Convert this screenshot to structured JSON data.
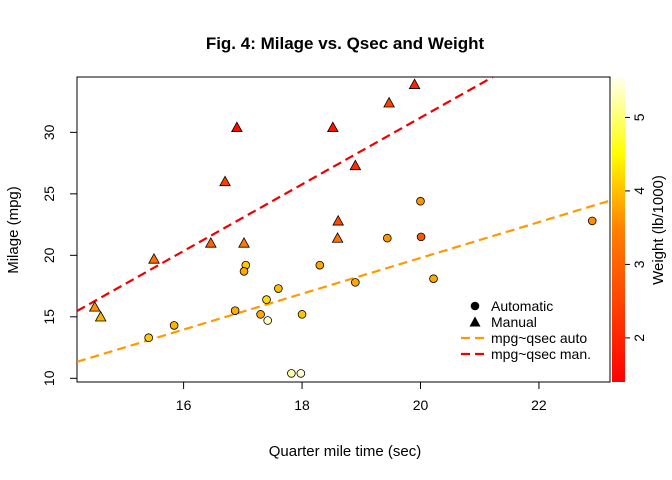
{
  "chart_data": {
    "type": "scatter",
    "title": "Fig. 4: Milage vs. Qsec and Weight",
    "xlabel": "Quarter mile time (sec)",
    "ylabel": "Milage (mpg)",
    "xlim": [
      14.2,
      23.2
    ],
    "ylim": [
      9.7,
      34.5
    ],
    "xticks": [
      16,
      18,
      20,
      22
    ],
    "yticks": [
      10,
      15,
      20,
      25,
      30
    ],
    "grid": false,
    "legend_position": "bottom-right",
    "series": [
      {
        "name": "Automatic",
        "marker": "circle",
        "points": [
          {
            "x": 20.22,
            "y": 18.1,
            "wt": 3.46
          },
          {
            "x": 15.84,
            "y": 14.3,
            "wt": 3.57
          },
          {
            "x": 20.0,
            "y": 24.4,
            "wt": 3.19
          },
          {
            "x": 22.9,
            "y": 22.8,
            "wt": 3.15
          },
          {
            "x": 18.3,
            "y": 19.2,
            "wt": 3.44
          },
          {
            "x": 18.9,
            "y": 17.8,
            "wt": 3.44
          },
          {
            "x": 17.4,
            "y": 16.4,
            "wt": 4.07
          },
          {
            "x": 17.6,
            "y": 17.3,
            "wt": 3.73
          },
          {
            "x": 18.0,
            "y": 15.2,
            "wt": 3.78
          },
          {
            "x": 17.82,
            "y": 10.4,
            "wt": 5.25
          },
          {
            "x": 17.98,
            "y": 10.4,
            "wt": 5.42
          },
          {
            "x": 17.42,
            "y": 14.7,
            "wt": 5.345
          },
          {
            "x": 20.01,
            "y": 21.5,
            "wt": 2.465
          },
          {
            "x": 16.87,
            "y": 15.5,
            "wt": 3.52
          },
          {
            "x": 17.3,
            "y": 15.2,
            "wt": 3.435
          },
          {
            "x": 15.41,
            "y": 13.3,
            "wt": 3.84
          },
          {
            "x": 17.05,
            "y": 19.2,
            "wt": 3.845
          },
          {
            "x": 19.44,
            "y": 21.4,
            "wt": 3.215
          },
          {
            "x": 17.02,
            "y": 18.7,
            "wt": 3.44
          }
        ]
      },
      {
        "name": "Manual",
        "marker": "triangle",
        "points": [
          {
            "x": 16.46,
            "y": 21.0,
            "wt": 2.62
          },
          {
            "x": 17.02,
            "y": 21.0,
            "wt": 2.875
          },
          {
            "x": 18.61,
            "y": 22.8,
            "wt": 2.32
          },
          {
            "x": 19.47,
            "y": 32.4,
            "wt": 2.2
          },
          {
            "x": 18.52,
            "y": 30.4,
            "wt": 1.615
          },
          {
            "x": 19.9,
            "y": 33.9,
            "wt": 1.835
          },
          {
            "x": 18.9,
            "y": 27.3,
            "wt": 1.935
          },
          {
            "x": 16.7,
            "y": 26.0,
            "wt": 2.14
          },
          {
            "x": 16.9,
            "y": 30.4,
            "wt": 1.513
          },
          {
            "x": 14.5,
            "y": 15.8,
            "wt": 3.17
          },
          {
            "x": 15.5,
            "y": 19.7,
            "wt": 2.77
          },
          {
            "x": 14.6,
            "y": 15.0,
            "wt": 3.57
          },
          {
            "x": 18.6,
            "y": 21.4,
            "wt": 2.78
          }
        ]
      }
    ],
    "fit_lines": [
      {
        "name": "mpg~qsec auto",
        "color": "#FF9900",
        "x": [
          14.2,
          23.2
        ],
        "y": [
          11.34,
          24.45
        ]
      },
      {
        "name": "mpg~qsec man.",
        "color": "#EE0000",
        "x": [
          14.2,
          21.22
        ],
        "y": [
          15.47,
          34.5
        ]
      }
    ],
    "colorbar": {
      "label": "Weight (lb/1000)",
      "range": [
        1.4,
        5.55
      ],
      "ticks": [
        2,
        3,
        4,
        5
      ]
    },
    "legend": [
      {
        "label": "Automatic",
        "symbol": "circle"
      },
      {
        "label": "Manual",
        "symbol": "triangle"
      },
      {
        "label": "mpg~qsec auto",
        "symbol": "dash",
        "color": "#FF9900"
      },
      {
        "label": "mpg~qsec man.",
        "symbol": "dash",
        "color": "#EE0000"
      }
    ]
  }
}
